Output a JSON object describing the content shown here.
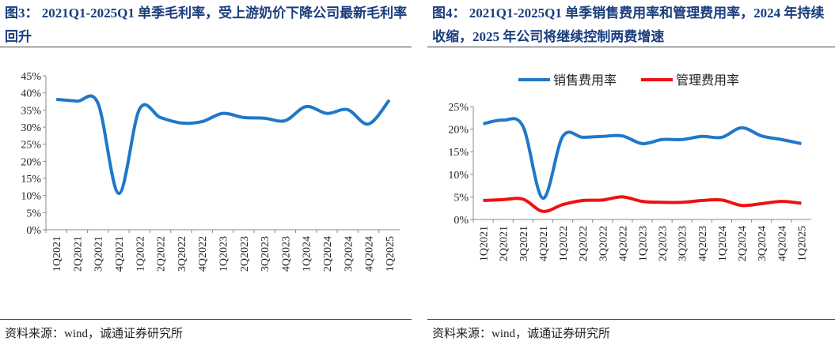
{
  "chart_data": [
    {
      "type": "line",
      "title": "图3：  2021Q1-2025Q1 单季毛利率，受上游奶价下降公司最新毛利率回升",
      "source": "资料来源：wind，诚通证券研究所",
      "categories": [
        "1Q2021",
        "2Q2021",
        "3Q2021",
        "4Q2021",
        "1Q2022",
        "2Q2022",
        "3Q2022",
        "4Q2022",
        "1Q2023",
        "2Q2023",
        "3Q2023",
        "4Q2023",
        "1Q2024",
        "2Q2024",
        "3Q2024",
        "4Q2024",
        "1Q2025"
      ],
      "series": [
        {
          "color": "#1f78c8",
          "values": [
            38.1,
            37.6,
            37.0,
            10.6,
            35.3,
            32.8,
            31.2,
            31.6,
            34.0,
            32.8,
            32.6,
            31.9,
            36.0,
            34.0,
            35.1,
            30.9,
            37.9
          ]
        }
      ],
      "ylim": [
        0,
        45
      ],
      "yticks": [
        {
          "value": 0,
          "label": "0%"
        },
        {
          "value": 5,
          "label": "5%"
        },
        {
          "value": 10,
          "label": "10%"
        },
        {
          "value": 15,
          "label": "15%"
        },
        {
          "value": 20,
          "label": "20%"
        },
        {
          "value": 25,
          "label": "25%"
        },
        {
          "value": 30,
          "label": "30%"
        },
        {
          "value": 35,
          "label": "35%"
        },
        {
          "value": 40,
          "label": "40%"
        },
        {
          "value": 45,
          "label": "45%"
        }
      ]
    },
    {
      "type": "line",
      "title": "图4：  2021Q1-2025Q1 单季销售费用率和管理费用率，2024 年持续收缩，2025 年公司将继续控制两费增速",
      "source": "资料来源：wind，诚通证券研究所",
      "categories": [
        "1Q2021",
        "2Q2021",
        "3Q2021",
        "4Q2021",
        "1Q2022",
        "2Q2022",
        "3Q2022",
        "4Q2022",
        "1Q2023",
        "2Q2023",
        "3Q2023",
        "4Q2023",
        "1Q2024",
        "2Q2024",
        "3Q2024",
        "4Q2024",
        "1Q2025"
      ],
      "series": [
        {
          "name": "销售费用率",
          "color": "#1f78c8",
          "values": [
            21.2,
            22.0,
            20.6,
            4.7,
            18.4,
            18.2,
            18.4,
            18.5,
            16.8,
            17.7,
            17.7,
            18.4,
            18.2,
            20.3,
            18.5,
            17.7,
            16.8
          ]
        },
        {
          "name": "管理费用率",
          "color": "#ee1111",
          "values": [
            4.2,
            4.4,
            4.5,
            1.8,
            3.3,
            4.2,
            4.3,
            5.0,
            4.0,
            3.8,
            3.8,
            4.2,
            4.3,
            3.1,
            3.5,
            4.0,
            3.6
          ]
        }
      ],
      "ylim": [
        0,
        25
      ],
      "yticks": [
        {
          "value": 0,
          "label": "0%"
        },
        {
          "value": 5,
          "label": "5%"
        },
        {
          "value": 10,
          "label": "10%"
        },
        {
          "value": 15,
          "label": "15%"
        },
        {
          "value": 20,
          "label": "20%"
        },
        {
          "value": 25,
          "label": "25%"
        }
      ],
      "legend": "top"
    }
  ]
}
